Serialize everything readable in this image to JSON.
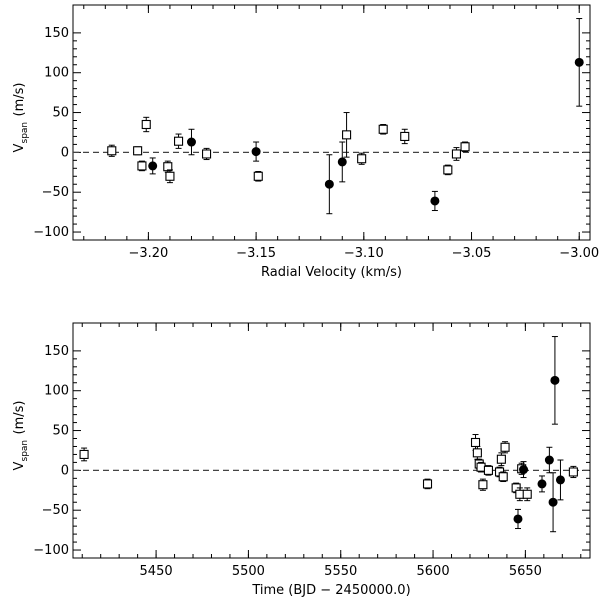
{
  "chart_data": [
    {
      "type": "scatter",
      "xlabel": "Radial Velocity (km/s)",
      "ylabel_main": "V",
      "ylabel_sub": "span",
      "ylabel_unit": "(m/s)",
      "xlim": [
        -3.235,
        -2.995
      ],
      "ylim": [
        -110,
        185
      ],
      "xticks": [
        -3.2,
        -3.15,
        -3.1,
        -3.05,
        -3.0
      ],
      "xtick_labels": [
        "−3.20",
        "−3.15",
        "−3.10",
        "−3.05",
        "−3.00"
      ],
      "yticks": [
        -100,
        -50,
        0,
        50,
        100,
        150
      ],
      "ytick_labels": [
        "−100",
        "−50",
        "0",
        "50",
        "100",
        "150"
      ],
      "zero_line": true,
      "series": [
        {
          "name": "open-squares",
          "marker": "open-square",
          "points": [
            {
              "x": -3.217,
              "y": 2,
              "err": 7
            },
            {
              "x": -3.205,
              "y": 2,
              "err": 5
            },
            {
              "x": -3.203,
              "y": -17,
              "err": 6
            },
            {
              "x": -3.201,
              "y": 35,
              "err": 9
            },
            {
              "x": -3.191,
              "y": -18,
              "err": 7
            },
            {
              "x": -3.19,
              "y": -30,
              "err": 8
            },
            {
              "x": -3.186,
              "y": 14,
              "err": 9
            },
            {
              "x": -3.173,
              "y": -2,
              "err": 7
            },
            {
              "x": -3.149,
              "y": -30,
              "err": 6
            },
            {
              "x": -3.108,
              "y": 22,
              "err": 28
            },
            {
              "x": -3.101,
              "y": -8,
              "err": 7
            },
            {
              "x": -3.091,
              "y": 29,
              "err": 6
            },
            {
              "x": -3.081,
              "y": 20,
              "err": 9
            },
            {
              "x": -3.061,
              "y": -22,
              "err": 6
            },
            {
              "x": -3.057,
              "y": -2,
              "err": 8
            },
            {
              "x": -3.053,
              "y": 7,
              "err": 6
            }
          ]
        },
        {
          "name": "filled-circles",
          "marker": "filled-circle",
          "points": [
            {
              "x": -3.198,
              "y": -17,
              "err": 10
            },
            {
              "x": -3.18,
              "y": 13,
              "err": 16
            },
            {
              "x": -3.15,
              "y": 1,
              "err": 12
            },
            {
              "x": -3.116,
              "y": -40,
              "err": 37
            },
            {
              "x": -3.11,
              "y": -12,
              "err": 25
            },
            {
              "x": -3.067,
              "y": -61,
              "err": 12
            },
            {
              "x": -3.0,
              "y": 113,
              "err": 55
            }
          ]
        }
      ]
    },
    {
      "type": "scatter",
      "xlabel": "Time (BJD − 2450000.0)",
      "ylabel_main": "V",
      "ylabel_sub": "span",
      "ylabel_unit": "(m/s)",
      "xlim": [
        5405,
        5685
      ],
      "ylim": [
        -110,
        185
      ],
      "xticks": [
        5450,
        5500,
        5550,
        5600,
        5650
      ],
      "xtick_labels": [
        "5450",
        "5500",
        "5550",
        "5600",
        "5650"
      ],
      "yticks": [
        -100,
        -50,
        0,
        50,
        100,
        150
      ],
      "ytick_labels": [
        "−100",
        "−50",
        "0",
        "50",
        "100",
        "150"
      ],
      "zero_line": true,
      "series": [
        {
          "name": "open-squares",
          "marker": "open-square",
          "points": [
            {
              "x": 5411,
              "y": 20,
              "err": 8
            },
            {
              "x": 5597,
              "y": -17,
              "err": 6
            },
            {
              "x": 5623,
              "y": 35,
              "err": 10
            },
            {
              "x": 5624,
              "y": 22,
              "err": 8
            },
            {
              "x": 5625,
              "y": 8,
              "err": 6
            },
            {
              "x": 5626,
              "y": 4,
              "err": 6
            },
            {
              "x": 5627,
              "y": -18,
              "err": 7
            },
            {
              "x": 5630,
              "y": 0,
              "err": 6
            },
            {
              "x": 5636,
              "y": -2,
              "err": 6
            },
            {
              "x": 5637,
              "y": 14,
              "err": 8
            },
            {
              "x": 5638,
              "y": -8,
              "err": 6
            },
            {
              "x": 5639,
              "y": 29,
              "err": 7
            },
            {
              "x": 5645,
              "y": -22,
              "err": 6
            },
            {
              "x": 5647,
              "y": -30,
              "err": 8
            },
            {
              "x": 5648,
              "y": 2,
              "err": 7
            },
            {
              "x": 5651,
              "y": -30,
              "err": 8
            },
            {
              "x": 5676,
              "y": -2,
              "err": 7
            }
          ]
        },
        {
          "name": "filled-circles",
          "marker": "filled-circle",
          "points": [
            {
              "x": 5646,
              "y": -61,
              "err": 12
            },
            {
              "x": 5649,
              "y": 1,
              "err": 10
            },
            {
              "x": 5659,
              "y": -17,
              "err": 10
            },
            {
              "x": 5663,
              "y": 13,
              "err": 16
            },
            {
              "x": 5665,
              "y": -40,
              "err": 37
            },
            {
              "x": 5666,
              "y": 113,
              "err": 55
            },
            {
              "x": 5669,
              "y": -12,
              "err": 25
            }
          ]
        }
      ]
    }
  ]
}
